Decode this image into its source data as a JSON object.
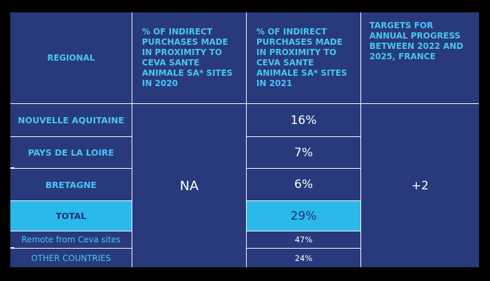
{
  "headers": {
    "regional": "REGIONAL",
    "col2020": "% OF INDIRECT PURCHASES MADE IN PROXIMITY TO CEVA SANTE ANIMALE SA* SITES IN 2020",
    "col2021": "% OF INDIRECT PURCHASES MADE IN PROXIMITY TO CEVA SANTE ANIMALE SA* SITES IN 2021",
    "targets": "TARGETS FOR ANNUAL PROGRESS BETWEEN 2022 AND 2025, FRANCE"
  },
  "rows": [
    {
      "region": "NOUVELLE AQUITAINE",
      "v2021": "16%"
    },
    {
      "region": "PAYS DE LA LOIRE",
      "v2021": "7%"
    },
    {
      "region": "BRETAGNE",
      "v2021": "6%"
    },
    {
      "region": "TOTAL",
      "v2021": "29%"
    },
    {
      "region": "Remote from Ceva sites",
      "v2021": "47%"
    },
    {
      "region": "OTHER COUNTRIES",
      "v2021": "24%"
    }
  ],
  "v2020_merged": "NA",
  "target_merged": "+2",
  "colors": {
    "navy": "#283a7c",
    "cyan_text": "#49c5f1",
    "highlight": "#2bb8eb"
  }
}
